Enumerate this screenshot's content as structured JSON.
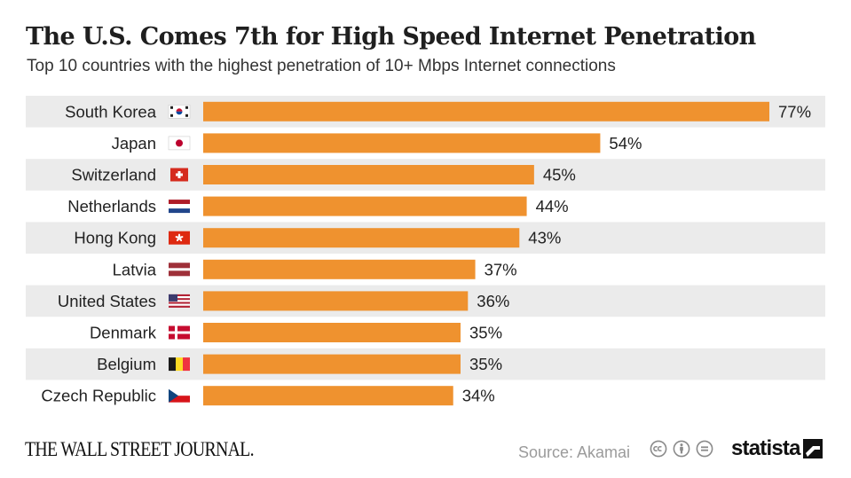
{
  "header": {
    "title": "The U.S. Comes 7th for High Speed Internet Penetration",
    "subtitle": "Top 10 countries with the highest penetration of 10+ Mbps Internet connections"
  },
  "chart_data": {
    "type": "bar",
    "orientation": "horizontal",
    "title": "The U.S. Comes 7th for High Speed Internet Penetration",
    "subtitle": "Top 10 countries with the highest penetration of 10+ Mbps Internet connections",
    "categories": [
      "South Korea",
      "Japan",
      "Switzerland",
      "Netherlands",
      "Hong Kong",
      "Latvia",
      "United States",
      "Denmark",
      "Belgium",
      "Czech Republic"
    ],
    "values": [
      77,
      54,
      45,
      44,
      43,
      37,
      36,
      35,
      35,
      34
    ],
    "value_labels": [
      "77%",
      "54%",
      "45%",
      "44%",
      "43%",
      "37%",
      "36%",
      "35%",
      "35%",
      "34%"
    ],
    "flags": [
      "south-korea-flag-icon",
      "japan-flag-icon",
      "switzerland-flag-icon",
      "netherlands-flag-icon",
      "hong-kong-flag-icon",
      "latvia-flag-icon",
      "united-states-flag-icon",
      "denmark-flag-icon",
      "belgium-flag-icon",
      "czech-republic-flag-icon"
    ],
    "unit": "%",
    "xlim": [
      0,
      77
    ],
    "bar_color": "#ef922f",
    "stripe_color": "#ebebeb",
    "grid": false,
    "legend": "none"
  },
  "footer": {
    "publisher": "THE WALL STREET JOURNAL.",
    "source": "Source: Akamai",
    "license_icons": [
      "cc-icon",
      "attribution-icon",
      "no-derivatives-icon"
    ],
    "brand": "statista",
    "brand_icon": "statista-logo-icon"
  }
}
